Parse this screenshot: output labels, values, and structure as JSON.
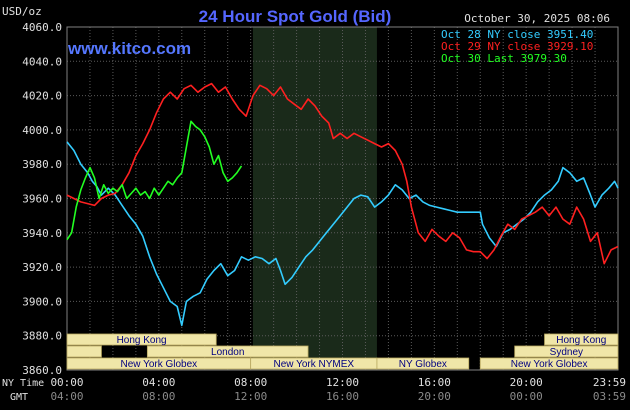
{
  "header": {
    "title": "24 Hour Spot Gold (Bid)",
    "unit": "USD/oz",
    "timestamp": "October 30, 2025 08:06",
    "website": "www.kitco.com"
  },
  "chart_data": {
    "type": "line",
    "title": "24 Hour Spot Gold (Bid)",
    "ylabel": "USD/oz",
    "ylim": [
      3860,
      4060
    ],
    "yticks": [
      "3860.0",
      "3880.0",
      "3900.0",
      "3920.0",
      "3940.0",
      "3960.0",
      "3980.0",
      "4000.0",
      "4020.0",
      "4040.0",
      "4060.0"
    ],
    "grid": true,
    "legend_position": "top-right",
    "xlim": [
      0,
      24
    ],
    "x_ticks_ny": [
      "00:00",
      "04:00",
      "08:00",
      "12:00",
      "16:00",
      "20:00",
      "23:59"
    ],
    "x_ticks_gmt": [
      "04:00",
      "08:00",
      "12:00",
      "16:00",
      "20:00",
      "00:00",
      "03:59"
    ],
    "x_label_ny": "NY Time",
    "x_label_gmt": "GMT",
    "highlight_range_hours": [
      8.1,
      13.5
    ],
    "series": [
      {
        "name": "Oct 28 NY close 3951.40",
        "color": "#33ccff",
        "points": [
          [
            0,
            3993
          ],
          [
            0.3,
            3988
          ],
          [
            0.6,
            3980
          ],
          [
            0.9,
            3975
          ],
          [
            1.1,
            3970
          ],
          [
            1.3,
            3967
          ],
          [
            1.5,
            3962
          ],
          [
            1.8,
            3966
          ],
          [
            2.1,
            3962
          ],
          [
            2.4,
            3956
          ],
          [
            2.7,
            3950
          ],
          [
            3.0,
            3945
          ],
          [
            3.3,
            3938
          ],
          [
            3.6,
            3926
          ],
          [
            3.9,
            3916
          ],
          [
            4.2,
            3908
          ],
          [
            4.5,
            3900
          ],
          [
            4.8,
            3897
          ],
          [
            5.0,
            3886
          ],
          [
            5.2,
            3900
          ],
          [
            5.5,
            3903
          ],
          [
            5.8,
            3905
          ],
          [
            6.1,
            3913
          ],
          [
            6.4,
            3918
          ],
          [
            6.7,
            3922
          ],
          [
            7.0,
            3915
          ],
          [
            7.3,
            3918
          ],
          [
            7.6,
            3926
          ],
          [
            7.9,
            3924
          ],
          [
            8.2,
            3926
          ],
          [
            8.5,
            3925
          ],
          [
            8.8,
            3922
          ],
          [
            9.1,
            3925
          ],
          [
            9.3,
            3918
          ],
          [
            9.5,
            3910
          ],
          [
            9.8,
            3914
          ],
          [
            10.1,
            3920
          ],
          [
            10.4,
            3926
          ],
          [
            10.7,
            3930
          ],
          [
            11.0,
            3935
          ],
          [
            11.3,
            3940
          ],
          [
            11.6,
            3945
          ],
          [
            11.9,
            3950
          ],
          [
            12.2,
            3955
          ],
          [
            12.5,
            3960
          ],
          [
            12.8,
            3962
          ],
          [
            13.1,
            3961
          ],
          [
            13.4,
            3955
          ],
          [
            13.7,
            3958
          ],
          [
            14.0,
            3962
          ],
          [
            14.3,
            3968
          ],
          [
            14.6,
            3965
          ],
          [
            14.9,
            3960
          ],
          [
            15.2,
            3962
          ],
          [
            15.5,
            3958
          ],
          [
            15.8,
            3956
          ],
          [
            16.1,
            3955
          ],
          [
            16.4,
            3954
          ],
          [
            16.7,
            3953
          ],
          [
            17.0,
            3952
          ],
          [
            17.5,
            3952
          ],
          [
            18.0,
            3952
          ],
          [
            18.1,
            3945
          ],
          [
            18.4,
            3937
          ],
          [
            18.7,
            3932
          ],
          [
            19.0,
            3940
          ],
          [
            19.3,
            3942
          ],
          [
            19.6,
            3945
          ],
          [
            19.9,
            3948
          ],
          [
            20.2,
            3952
          ],
          [
            20.5,
            3958
          ],
          [
            20.8,
            3962
          ],
          [
            21.1,
            3965
          ],
          [
            21.4,
            3970
          ],
          [
            21.6,
            3978
          ],
          [
            21.9,
            3975
          ],
          [
            22.2,
            3970
          ],
          [
            22.5,
            3972
          ],
          [
            22.8,
            3962
          ],
          [
            23.0,
            3955
          ],
          [
            23.3,
            3962
          ],
          [
            23.6,
            3966
          ],
          [
            23.85,
            3970
          ],
          [
            24.0,
            3966
          ]
        ]
      },
      {
        "name": "Oct 29 NY close 3929.10",
        "color": "#ff2020",
        "points": [
          [
            0,
            3962
          ],
          [
            0.3,
            3960
          ],
          [
            0.6,
            3958
          ],
          [
            0.9,
            3957
          ],
          [
            1.2,
            3956
          ],
          [
            1.5,
            3960
          ],
          [
            1.8,
            3962
          ],
          [
            2.1,
            3963
          ],
          [
            2.4,
            3968
          ],
          [
            2.7,
            3975
          ],
          [
            3.0,
            3985
          ],
          [
            3.3,
            3992
          ],
          [
            3.6,
            4000
          ],
          [
            3.9,
            4010
          ],
          [
            4.2,
            4018
          ],
          [
            4.5,
            4022
          ],
          [
            4.8,
            4018
          ],
          [
            5.1,
            4024
          ],
          [
            5.4,
            4026
          ],
          [
            5.7,
            4022
          ],
          [
            6.0,
            4025
          ],
          [
            6.3,
            4027
          ],
          [
            6.6,
            4022
          ],
          [
            6.9,
            4025
          ],
          [
            7.2,
            4018
          ],
          [
            7.5,
            4012
          ],
          [
            7.8,
            4008
          ],
          [
            8.1,
            4020
          ],
          [
            8.4,
            4026
          ],
          [
            8.7,
            4024
          ],
          [
            9.0,
            4020
          ],
          [
            9.3,
            4025
          ],
          [
            9.6,
            4018
          ],
          [
            9.9,
            4015
          ],
          [
            10.2,
            4012
          ],
          [
            10.5,
            4018
          ],
          [
            10.8,
            4014
          ],
          [
            11.1,
            4008
          ],
          [
            11.4,
            4004
          ],
          [
            11.6,
            3995
          ],
          [
            11.9,
            3998
          ],
          [
            12.2,
            3995
          ],
          [
            12.5,
            3998
          ],
          [
            12.8,
            3996
          ],
          [
            13.1,
            3994
          ],
          [
            13.4,
            3992
          ],
          [
            13.7,
            3990
          ],
          [
            14.0,
            3992
          ],
          [
            14.3,
            3988
          ],
          [
            14.6,
            3980
          ],
          [
            14.8,
            3970
          ],
          [
            15.0,
            3955
          ],
          [
            15.3,
            3940
          ],
          [
            15.6,
            3935
          ],
          [
            15.9,
            3942
          ],
          [
            16.2,
            3938
          ],
          [
            16.5,
            3935
          ],
          [
            16.8,
            3940
          ],
          [
            17.1,
            3937
          ],
          [
            17.4,
            3930
          ],
          [
            17.7,
            3929
          ],
          [
            18.0,
            3929
          ],
          [
            18.3,
            3925
          ],
          [
            18.6,
            3930
          ],
          [
            18.9,
            3938
          ],
          [
            19.2,
            3945
          ],
          [
            19.5,
            3942
          ],
          [
            19.8,
            3948
          ],
          [
            20.1,
            3950
          ],
          [
            20.4,
            3952
          ],
          [
            20.7,
            3955
          ],
          [
            21.0,
            3950
          ],
          [
            21.3,
            3955
          ],
          [
            21.6,
            3948
          ],
          [
            21.9,
            3945
          ],
          [
            22.2,
            3955
          ],
          [
            22.5,
            3948
          ],
          [
            22.8,
            3935
          ],
          [
            23.1,
            3940
          ],
          [
            23.4,
            3922
          ],
          [
            23.7,
            3930
          ],
          [
            24.0,
            3932
          ]
        ]
      },
      {
        "name": "Oct 30 Last 3979.30",
        "color": "#22ff22",
        "points": [
          [
            0,
            3936
          ],
          [
            0.2,
            3940
          ],
          [
            0.4,
            3955
          ],
          [
            0.6,
            3965
          ],
          [
            0.8,
            3972
          ],
          [
            1.0,
            3978
          ],
          [
            1.2,
            3972
          ],
          [
            1.4,
            3960
          ],
          [
            1.6,
            3968
          ],
          [
            1.8,
            3963
          ],
          [
            2.0,
            3966
          ],
          [
            2.2,
            3964
          ],
          [
            2.4,
            3968
          ],
          [
            2.6,
            3960
          ],
          [
            2.8,
            3963
          ],
          [
            3.0,
            3966
          ],
          [
            3.2,
            3962
          ],
          [
            3.4,
            3964
          ],
          [
            3.6,
            3960
          ],
          [
            3.8,
            3966
          ],
          [
            4.0,
            3962
          ],
          [
            4.2,
            3966
          ],
          [
            4.4,
            3970
          ],
          [
            4.6,
            3968
          ],
          [
            4.8,
            3972
          ],
          [
            5.0,
            3975
          ],
          [
            5.2,
            3990
          ],
          [
            5.4,
            4005
          ],
          [
            5.6,
            4002
          ],
          [
            5.8,
            4000
          ],
          [
            6.0,
            3996
          ],
          [
            6.2,
            3990
          ],
          [
            6.4,
            3980
          ],
          [
            6.6,
            3985
          ],
          [
            6.8,
            3975
          ],
          [
            7.0,
            3970
          ],
          [
            7.2,
            3972
          ],
          [
            7.4,
            3975
          ],
          [
            7.6,
            3979
          ]
        ]
      }
    ]
  },
  "sessions": {
    "ny_time_label": "NY Time",
    "gmt_label": "GMT",
    "items": [
      {
        "label": "Hong Kong",
        "start": 0,
        "end": 6.5,
        "row": 0
      },
      {
        "label": "",
        "start": 0,
        "end": 1.5,
        "row": 1
      },
      {
        "label": "London",
        "start": 3.5,
        "end": 10.5,
        "row": 1
      },
      {
        "label": "New York Globex",
        "start": 0,
        "end": 8.0,
        "row": 2
      },
      {
        "label": "New York NYMEX",
        "start": 8.0,
        "end": 13.5,
        "row": 2
      },
      {
        "label": "NY Globex",
        "start": 13.5,
        "end": 17.5,
        "row": 2
      },
      {
        "label": "Hong Kong",
        "start": 20.8,
        "end": 24.0,
        "row": 0
      },
      {
        "label": "Sydney",
        "start": 19.5,
        "end": 24.0,
        "row": 1
      },
      {
        "label": "New York Globex",
        "start": 18.0,
        "end": 24.0,
        "row": 2
      }
    ]
  },
  "colors": {
    "background": "#000000",
    "plot_background": "#000000",
    "highlight": "#1a2a1a",
    "grid": "#5a5a5a",
    "axis_text": "#e0e0e0",
    "title": "#5566ff",
    "website": "#5577ff",
    "session_fill": "#f0e6a8",
    "session_text": "#000080"
  }
}
